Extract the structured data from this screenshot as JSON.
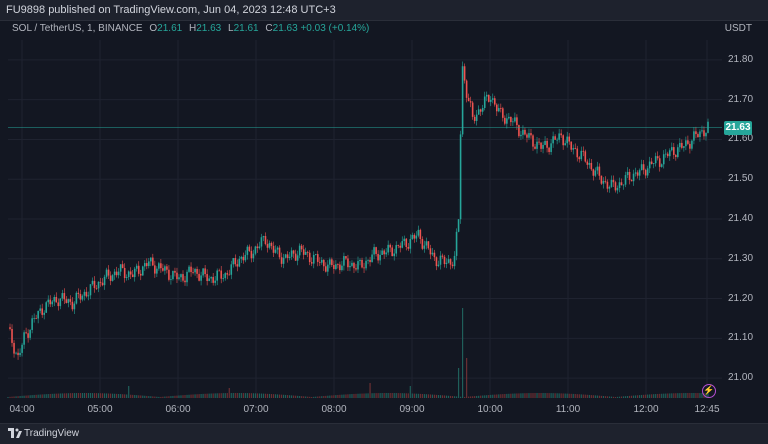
{
  "header": {
    "title": "FU9898 published on TradingView.com, Jun 04, 2023 12:48 UTC+3"
  },
  "legend": {
    "symbol": "SOL / TetherUS, 1, BINANCE",
    "o_key": "O",
    "o_val": "21.61",
    "h_key": "H",
    "h_val": "21.63",
    "l_key": "L",
    "l_val": "21.61",
    "c_key": "C",
    "c_val": "21.63",
    "change": "+0.03 (+0.14%)"
  },
  "price_axis": {
    "currency": "USDT",
    "last_price": "21.63"
  },
  "footer": {
    "brand": "TradingView"
  },
  "colors": {
    "up": "#26a69a",
    "down": "#ef5350",
    "background": "#131722"
  },
  "chart_data": {
    "type": "candlestick",
    "y_ticks": [
      "21.80",
      "21.70",
      "21.60",
      "21.50",
      "21.40",
      "21.30",
      "21.20",
      "21.10",
      "21.00"
    ],
    "x_ticks": [
      "04:00",
      "05:00",
      "06:00",
      "07:00",
      "08:00",
      "09:00",
      "10:00",
      "11:00",
      "12:00",
      "12:45"
    ],
    "ylim": [
      20.95,
      21.85
    ],
    "last_price": 21.63,
    "close_path": [
      [
        0,
        21.12
      ],
      [
        3,
        21.08
      ],
      [
        5,
        21.05
      ],
      [
        8,
        21.1
      ],
      [
        12,
        21.14
      ],
      [
        18,
        21.18
      ],
      [
        25,
        21.2
      ],
      [
        32,
        21.19
      ],
      [
        40,
        21.22
      ],
      [
        48,
        21.25
      ],
      [
        55,
        21.27
      ],
      [
        62,
        21.26
      ],
      [
        70,
        21.29
      ],
      [
        78,
        21.27
      ],
      [
        85,
        21.25
      ],
      [
        92,
        21.27
      ],
      [
        100,
        21.25
      ],
      [
        108,
        21.26
      ],
      [
        115,
        21.3
      ],
      [
        122,
        21.32
      ],
      [
        128,
        21.35
      ],
      [
        132,
        21.32
      ],
      [
        138,
        21.3
      ],
      [
        145,
        21.32
      ],
      [
        152,
        21.3
      ],
      [
        160,
        21.28
      ],
      [
        168,
        21.29
      ],
      [
        175,
        21.28
      ],
      [
        182,
        21.31
      ],
      [
        190,
        21.32
      ],
      [
        198,
        21.34
      ],
      [
        204,
        21.36
      ],
      [
        208,
        21.33
      ],
      [
        212,
        21.3
      ],
      [
        218,
        21.29
      ],
      [
        222,
        21.3
      ],
      [
        224,
        21.4
      ],
      [
        225,
        21.62
      ],
      [
        226,
        21.78
      ],
      [
        228,
        21.72
      ],
      [
        231,
        21.65
      ],
      [
        235,
        21.68
      ],
      [
        240,
        21.71
      ],
      [
        245,
        21.66
      ],
      [
        250,
        21.65
      ],
      [
        255,
        21.62
      ],
      [
        260,
        21.6
      ],
      [
        265,
        21.58
      ],
      [
        270,
        21.59
      ],
      [
        275,
        21.61
      ],
      [
        280,
        21.58
      ],
      [
        285,
        21.56
      ],
      [
        290,
        21.53
      ],
      [
        295,
        21.5
      ],
      [
        300,
        21.48
      ],
      [
        305,
        21.49
      ],
      [
        310,
        21.51
      ],
      [
        315,
        21.52
      ],
      [
        320,
        21.54
      ],
      [
        325,
        21.55
      ],
      [
        330,
        21.57
      ],
      [
        335,
        21.58
      ],
      [
        340,
        21.6
      ],
      [
        345,
        21.62
      ],
      [
        348,
        21.63
      ]
    ],
    "volume_spikes": [
      [
        226,
        0.9
      ],
      [
        228,
        0.4
      ],
      [
        224,
        0.3
      ],
      [
        180,
        0.15
      ],
      [
        60,
        0.12
      ],
      [
        110,
        0.1
      ],
      [
        200,
        0.12
      ]
    ]
  }
}
